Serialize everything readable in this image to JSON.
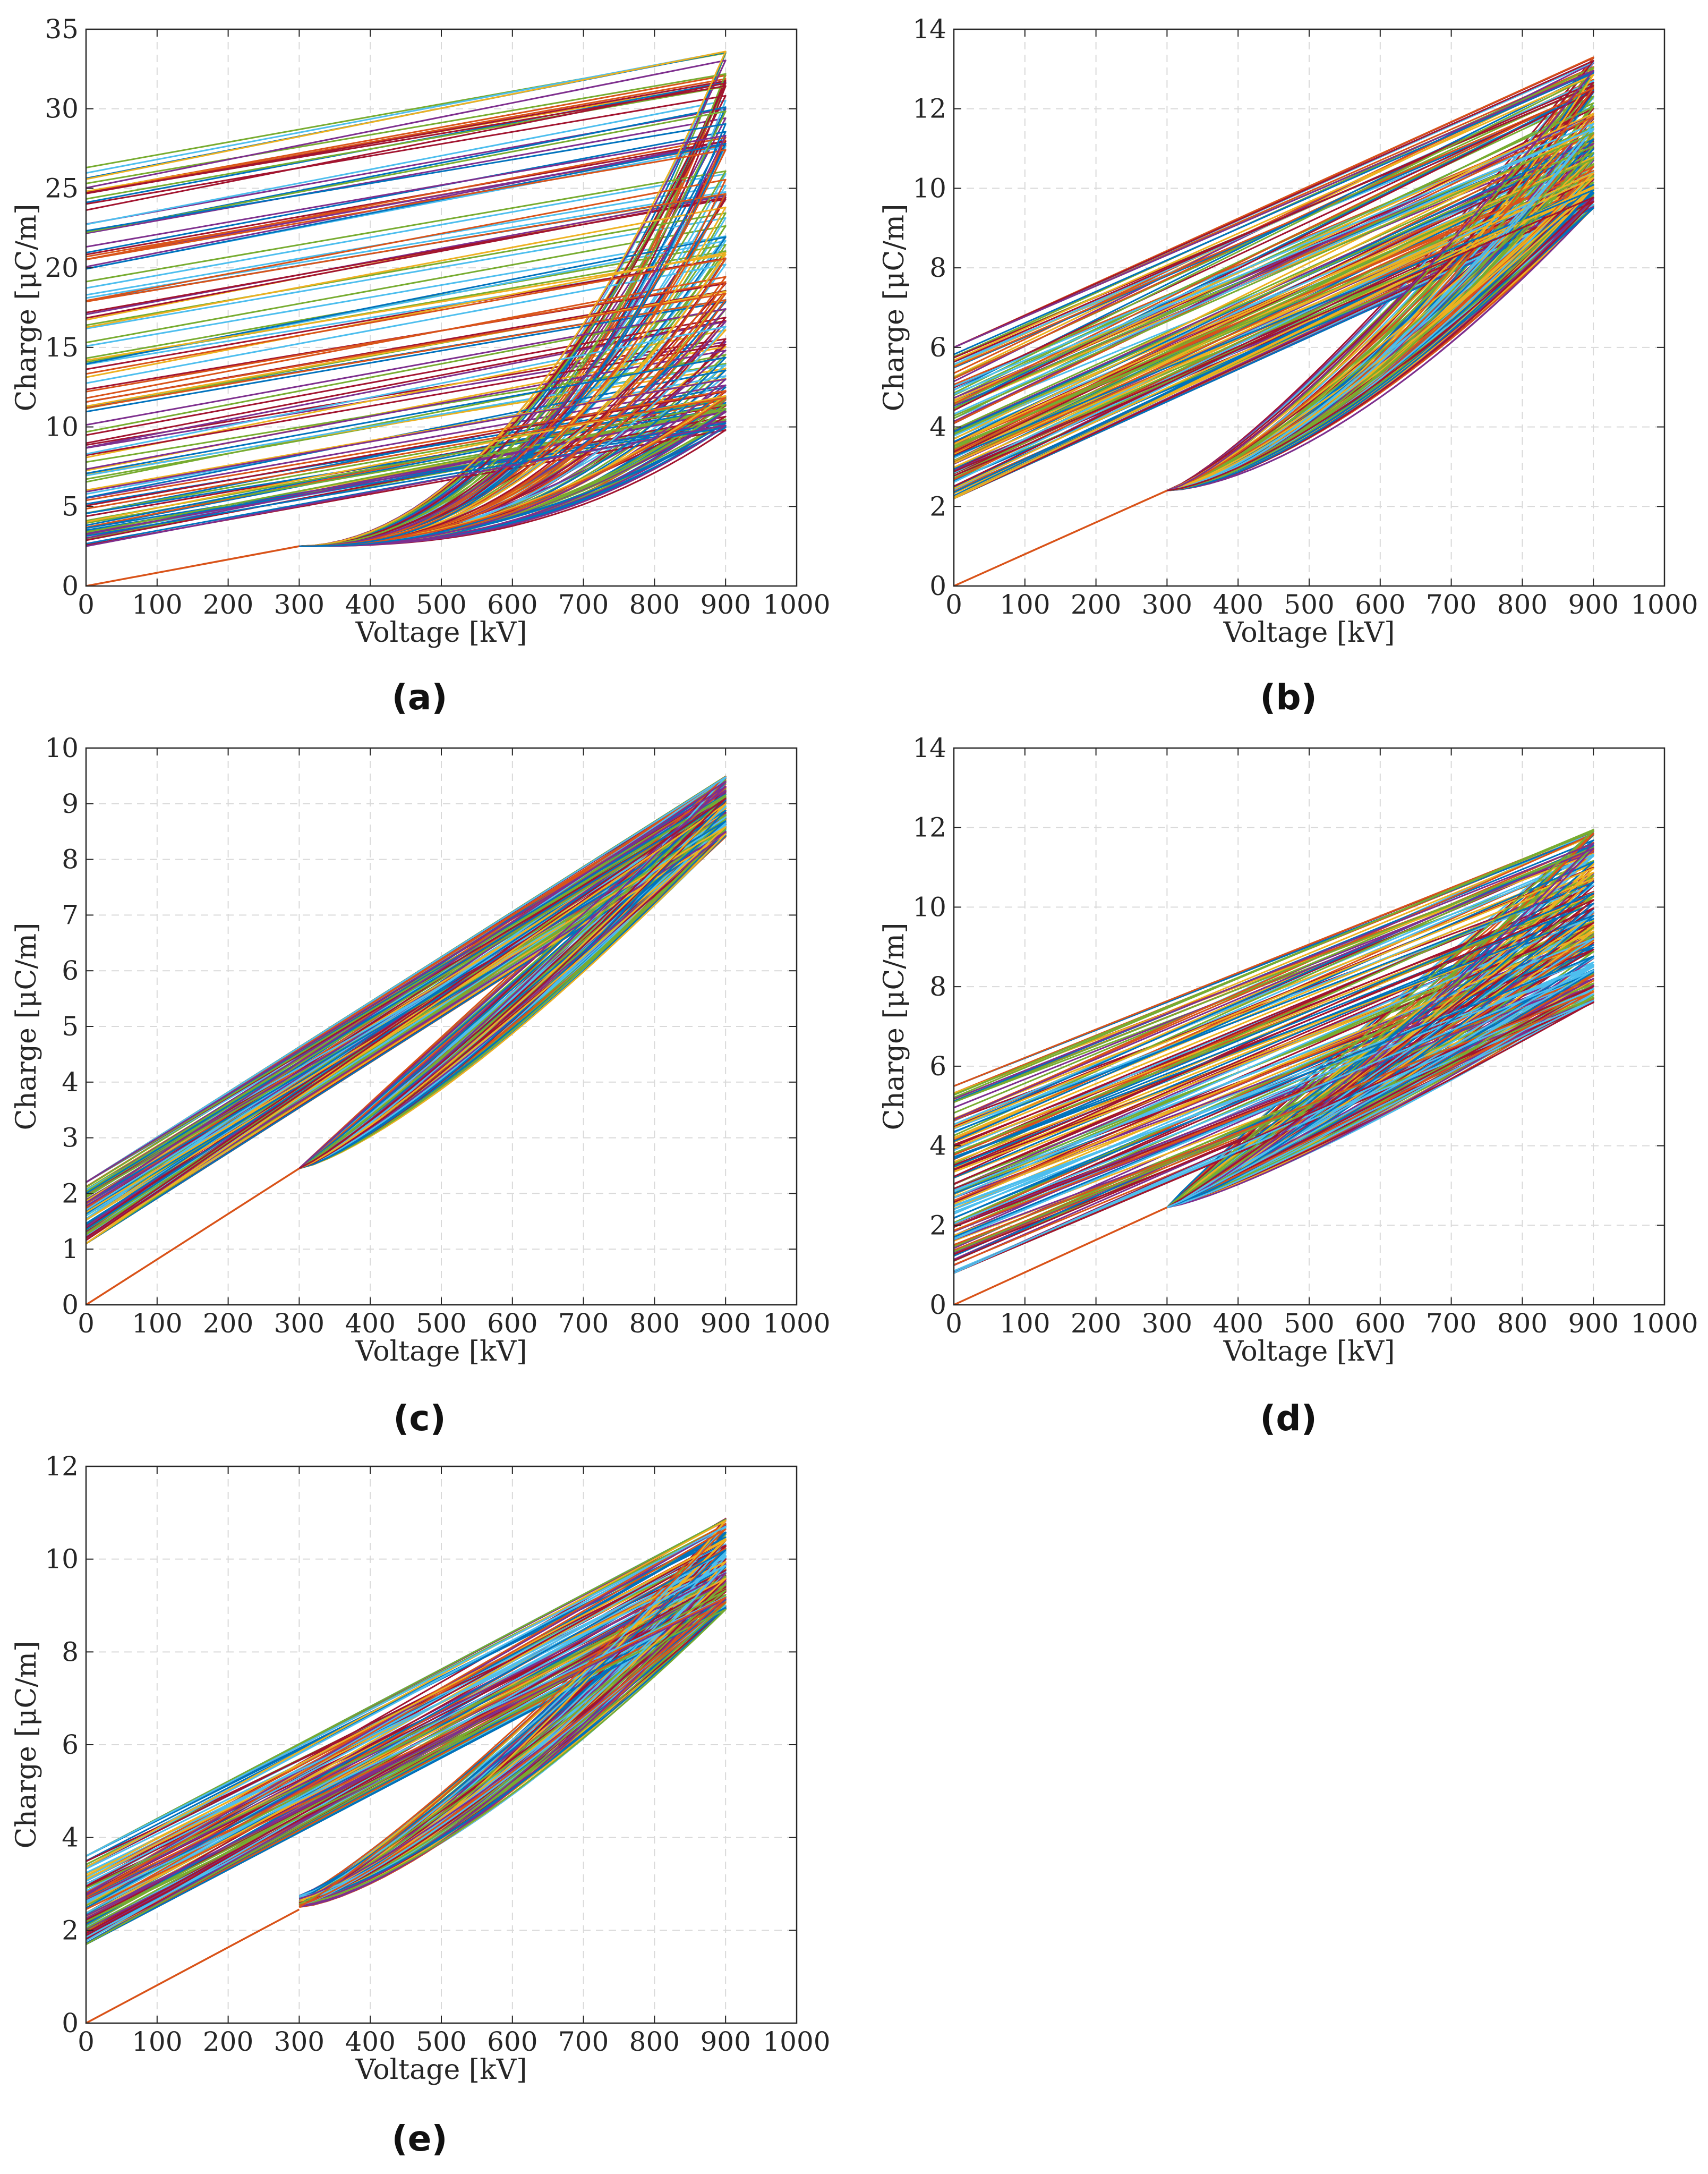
{
  "figure": {
    "panel_count": 5,
    "palette": [
      "#0072BD",
      "#D95319",
      "#EDB120",
      "#7E2F8E",
      "#77AC30",
      "#4DBEEE",
      "#A2142F"
    ],
    "grid_color": "#d9d9d9",
    "axis_color": "#262626"
  },
  "chart_data": [
    {
      "type": "line",
      "panel_label": "(a)",
      "xlabel": "Voltage [kV]",
      "ylabel": "Charge [μC/m]",
      "xlim": [
        0,
        1000
      ],
      "ylim": [
        0,
        35
      ],
      "xticks": [
        0,
        100,
        200,
        300,
        400,
        500,
        600,
        700,
        800,
        900,
        1000
      ],
      "yticks": [
        0,
        5,
        10,
        15,
        20,
        25,
        30,
        35
      ],
      "grid": true,
      "base_line": {
        "x": [
          0,
          300
        ],
        "y": [
          0,
          2.5
        ],
        "color": "#D95319"
      },
      "charge_start": {
        "x": 300,
        "y": 2.5
      },
      "peak_voltage": 900,
      "cycle_count": 120,
      "peak_charge_range": [
        9.8,
        33.6
      ],
      "residual_charge_range": [
        2.5,
        26.3
      ],
      "curve_exponent": 2.2,
      "gap": false
    },
    {
      "type": "line",
      "panel_label": "(b)",
      "xlabel": "Voltage [kV]",
      "ylabel": "Charge [μC/m]",
      "xlim": [
        0,
        1000
      ],
      "ylim": [
        0,
        14
      ],
      "xticks": [
        0,
        100,
        200,
        300,
        400,
        500,
        600,
        700,
        800,
        900,
        1000
      ],
      "yticks": [
        0,
        2,
        4,
        6,
        8,
        10,
        12,
        14
      ],
      "grid": true,
      "base_line": {
        "x": [
          0,
          300
        ],
        "y": [
          0,
          2.4
        ],
        "color": "#D95319"
      },
      "charge_start": {
        "x": 300,
        "y": 2.4
      },
      "peak_voltage": 900,
      "cycle_count": 150,
      "peak_charge_range": [
        9.5,
        13.3
      ],
      "residual_charge_range": [
        2.2,
        6.0
      ],
      "curve_exponent": 1.4,
      "gap": false
    },
    {
      "type": "line",
      "panel_label": "(c)",
      "xlabel": "Voltage [kV]",
      "ylabel": "Charge [μC/m]",
      "xlim": [
        0,
        1000
      ],
      "ylim": [
        0,
        10
      ],
      "xticks": [
        0,
        100,
        200,
        300,
        400,
        500,
        600,
        700,
        800,
        900,
        1000
      ],
      "yticks": [
        0,
        1,
        2,
        3,
        4,
        5,
        6,
        7,
        8,
        9,
        10
      ],
      "grid": true,
      "base_line": {
        "x": [
          0,
          300
        ],
        "y": [
          0,
          2.45
        ],
        "color": "#D95319"
      },
      "charge_start": {
        "x": 300,
        "y": 2.45
      },
      "peak_voltage": 900,
      "cycle_count": 150,
      "peak_charge_range": [
        8.4,
        9.5
      ],
      "residual_charge_range": [
        1.1,
        2.2
      ],
      "curve_exponent": 1.15,
      "gap": false
    },
    {
      "type": "line",
      "panel_label": "(d)",
      "xlabel": "Voltage [kV]",
      "ylabel": "Charge [μC/m]",
      "xlim": [
        0,
        1000
      ],
      "ylim": [
        0,
        14
      ],
      "xticks": [
        0,
        100,
        200,
        300,
        400,
        500,
        600,
        700,
        800,
        900,
        1000
      ],
      "yticks": [
        0,
        2,
        4,
        6,
        8,
        10,
        12,
        14
      ],
      "grid": true,
      "base_line": {
        "x": [
          0,
          300
        ],
        "y": [
          0,
          2.45
        ],
        "color": "#D95319"
      },
      "charge_start": {
        "x": 300,
        "y": 2.45
      },
      "peak_voltage": 900,
      "cycle_count": 150,
      "peak_charge_range": [
        7.6,
        12.0
      ],
      "residual_charge_range": [
        0.8,
        5.5
      ],
      "curve_exponent": 1.1,
      "gap": false
    },
    {
      "type": "line",
      "panel_label": "(e)",
      "xlabel": "Voltage [kV]",
      "ylabel": "Charge [μC/m]",
      "xlim": [
        0,
        1000
      ],
      "ylim": [
        0,
        12
      ],
      "xticks": [
        0,
        100,
        200,
        300,
        400,
        500,
        600,
        700,
        800,
        900,
        1000
      ],
      "yticks": [
        0,
        2,
        4,
        6,
        8,
        10,
        12
      ],
      "grid": true,
      "base_line": {
        "x": [
          0,
          300
        ],
        "y": [
          0,
          2.45
        ],
        "color": "#D95319"
      },
      "charge_start": {
        "x": 300,
        "y": 2.45
      },
      "peak_voltage": 900,
      "cycle_count": 140,
      "peak_charge_range": [
        8.9,
        10.9
      ],
      "residual_charge_range": [
        1.7,
        3.6
      ],
      "curve_exponent": 1.3,
      "gap": true,
      "gap_range": [
        2.5,
        2.75
      ]
    }
  ]
}
